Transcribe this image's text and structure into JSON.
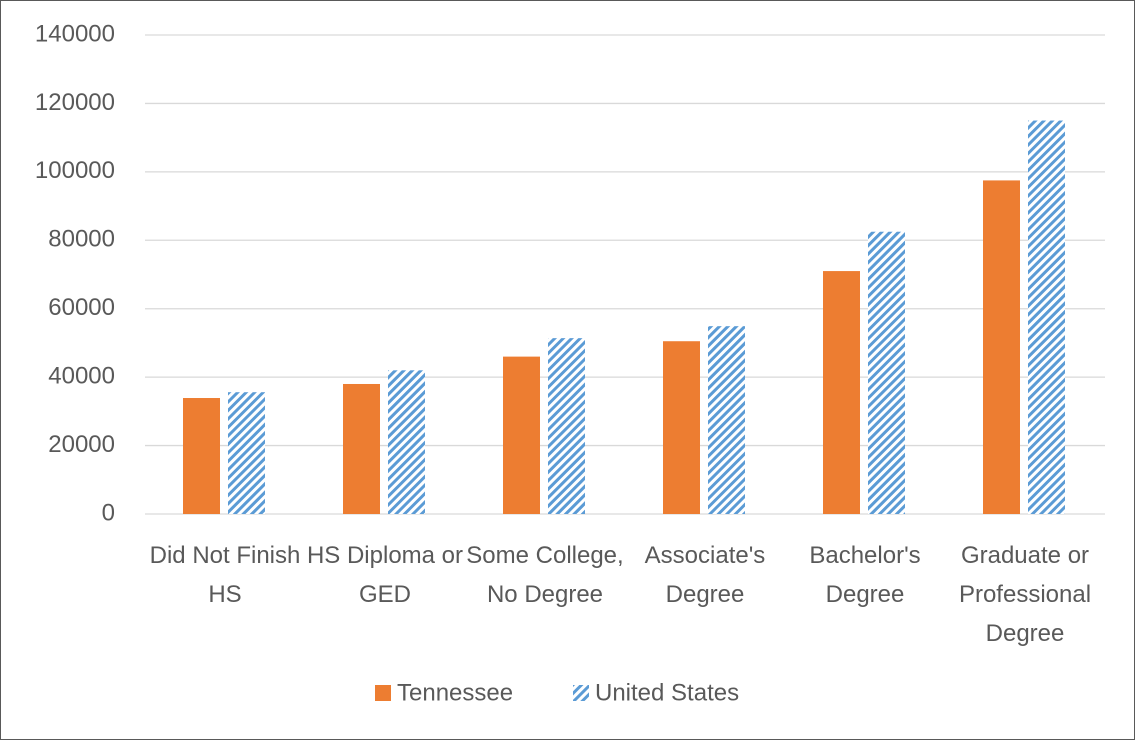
{
  "chart_data": {
    "type": "bar",
    "categories": [
      "Did Not Finish HS",
      "HS Diploma or GED",
      "Some College, No Degree",
      "Associate's Degree",
      "Bachelor's Degree",
      "Graduate or Professional Degree"
    ],
    "series": [
      {
        "name": "Tennessee",
        "color": "#ed7d31",
        "values": [
          33900,
          38000,
          46000,
          50500,
          71000,
          97500
        ]
      },
      {
        "name": "United States",
        "color": "#5b9bd5",
        "pattern": "hatch",
        "values": [
          35600,
          42000,
          51400,
          54900,
          82500,
          115000
        ]
      }
    ],
    "ylim": [
      0,
      140000
    ],
    "yticks": [
      0,
      20000,
      40000,
      60000,
      80000,
      100000,
      120000,
      140000
    ],
    "grid": true,
    "legend": "bottom"
  }
}
